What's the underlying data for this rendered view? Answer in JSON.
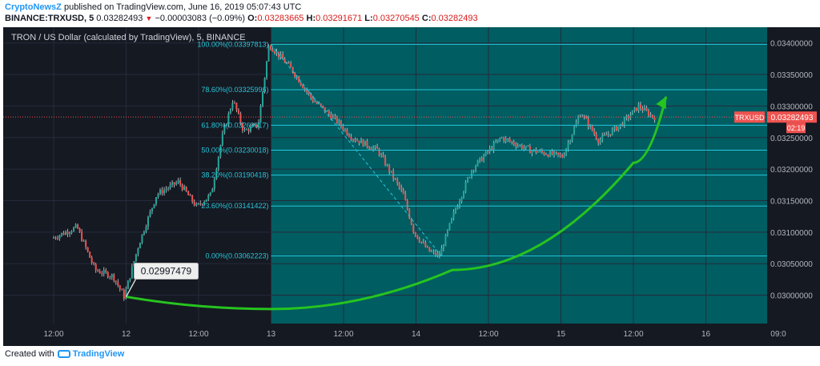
{
  "header": {
    "author": "CryptoNewsZ",
    "published_text": "published on TradingView.com, June 16, 2019 05:07:43 UTC",
    "symbol": "BINANCE:TRXUSD, 5",
    "last": "0.03282493",
    "change": "−0.00003083 (−0.09%)",
    "o_label": "O:",
    "o_value": "0.03283665",
    "h_label": "H:",
    "h_value": "0.03291671",
    "l_label": "L:",
    "l_value": "0.03270545",
    "c_label": "C:",
    "c_value": "0.03282493"
  },
  "footer": {
    "created_with": "Created with",
    "brand": "TradingView"
  },
  "colors": {
    "up": "#26a69a",
    "down": "#ef5350",
    "fib": "#26c6da",
    "fib_zone": "#005d62",
    "arrow": "#26c41f",
    "price_tag": "#ef5350",
    "dark_bg": "#151922"
  },
  "chart_data": {
    "type": "candlestick",
    "title": "TRON / US Dollar (calculated by TradingView), 5, BINANCE",
    "ylim": [
      0.02955,
      0.03425
    ],
    "y_ticks": [
      "0.03000000",
      "0.03050000",
      "0.03100000",
      "0.03150000",
      "0.03200000",
      "0.03250000",
      "0.03300000",
      "0.03350000",
      "0.03400000"
    ],
    "x_ticks": [
      "12:00",
      "12",
      "12:00",
      "13",
      "12:00",
      "14",
      "12:00",
      "15",
      "12:00",
      "16",
      "09:0"
    ],
    "price_path": [
      [
        0.0,
        0.0309
      ],
      [
        0.35,
        0.03108
      ],
      [
        0.6,
        0.0304
      ],
      [
        0.85,
        0.0303
      ],
      [
        1.0,
        0.02997479
      ],
      [
        1.2,
        0.0308
      ],
      [
        1.45,
        0.0316
      ],
      [
        1.75,
        0.0318
      ],
      [
        2.0,
        0.0314
      ],
      [
        2.2,
        0.0316
      ],
      [
        2.35,
        0.0325
      ],
      [
        2.5,
        0.0331
      ],
      [
        2.65,
        0.0326
      ],
      [
        2.85,
        0.0327
      ],
      [
        3.0,
        0.03397813
      ],
      [
        3.3,
        0.0336
      ],
      [
        3.6,
        0.0331
      ],
      [
        3.9,
        0.0328
      ],
      [
        4.15,
        0.0325
      ],
      [
        4.5,
        0.0323
      ],
      [
        4.85,
        0.0316
      ],
      [
        5.0,
        0.031
      ],
      [
        5.2,
        0.0307
      ],
      [
        5.35,
        0.03062223
      ],
      [
        5.55,
        0.0313
      ],
      [
        5.8,
        0.032
      ],
      [
        6.2,
        0.0325
      ],
      [
        6.6,
        0.0323
      ],
      [
        7.05,
        0.0322
      ],
      [
        7.3,
        0.0329
      ],
      [
        7.55,
        0.03245
      ],
      [
        7.85,
        0.0327
      ],
      [
        8.1,
        0.033
      ],
      [
        8.3,
        0.03282493
      ]
    ],
    "fib_levels": [
      {
        "label": "100.00%(0.03397813)",
        "value": 0.03397813
      },
      {
        "label": "78.60%(0.03325996)",
        "value": 0.03325996
      },
      {
        "label": "61.80%(0.03269617)",
        "value": 0.03269617
      },
      {
        "label": "50.00%(0.03230018)",
        "value": 0.03230018
      },
      {
        "label": "38.20%(0.03190418)",
        "value": 0.03190418
      },
      {
        "label": "23.60%(0.03141422)",
        "value": 0.03141422
      },
      {
        "label": "0.00%(0.03062223)",
        "value": 0.03062223
      }
    ],
    "fib_range": {
      "x_start": 3.0,
      "x_end": 10.5
    },
    "trend_line": {
      "x1": 3.0,
      "y1": 0.03397813,
      "x2": 5.35,
      "y2": 0.03062223
    },
    "annotation": {
      "label": "0.02997479",
      "x": 1.0,
      "y": 0.02997479
    },
    "arrow_path": [
      [
        1.0,
        0.02997479
      ],
      [
        3.0,
        0.02978
      ],
      [
        5.5,
        0.0304
      ],
      [
        8.0,
        0.0321
      ],
      [
        8.45,
        0.03315
      ]
    ],
    "last_price": {
      "label": "TRXUSD",
      "value": "0.03282493",
      "y": 0.03282493,
      "countdown": "02:19"
    }
  }
}
